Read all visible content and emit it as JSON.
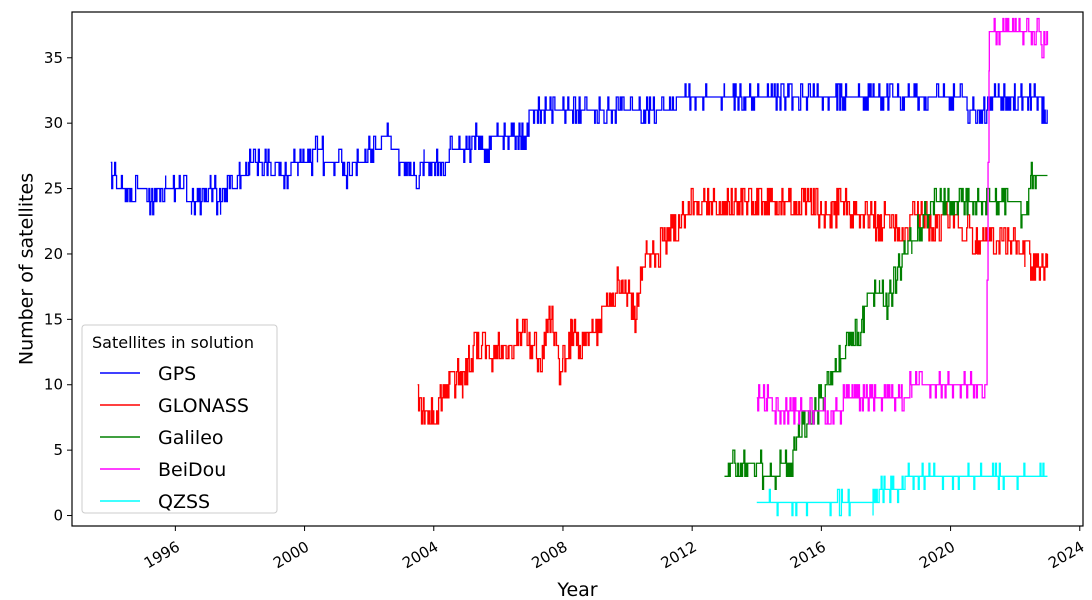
{
  "chart_data": {
    "type": "line",
    "title": "",
    "xlabel": "Year",
    "ylabel": "Number of satellites",
    "xlim": [
      1992.8,
      2024.1
    ],
    "ylim": [
      -0.8,
      38.5
    ],
    "x_ticks": [
      "1996",
      "2000",
      "2004",
      "2008",
      "2012",
      "2016",
      "2020",
      "2024"
    ],
    "y_ticks": [
      "0",
      "5",
      "10",
      "15",
      "20",
      "25",
      "30",
      "35"
    ],
    "grid": false,
    "legend": {
      "title": "Satellites in solution",
      "position": "lower-left"
    },
    "series": [
      {
        "name": "GPS",
        "color": "#0000ff",
        "noise": 0.35,
        "points": [
          [
            1994.0,
            26
          ],
          [
            1994.3,
            25
          ],
          [
            1994.5,
            24
          ],
          [
            1995.0,
            25
          ],
          [
            1995.4,
            24
          ],
          [
            1995.7,
            25
          ],
          [
            1996.2,
            25
          ],
          [
            1996.5,
            24
          ],
          [
            1996.9,
            24
          ],
          [
            1997.1,
            25
          ],
          [
            1997.4,
            24
          ],
          [
            1997.8,
            25
          ],
          [
            1998.0,
            26
          ],
          [
            1998.3,
            27
          ],
          [
            1999.0,
            27
          ],
          [
            1999.4,
            26
          ],
          [
            1999.8,
            27
          ],
          [
            2000.1,
            27
          ],
          [
            2000.4,
            28
          ],
          [
            2000.7,
            27
          ],
          [
            2001.0,
            27
          ],
          [
            2001.3,
            26
          ],
          [
            2001.6,
            27
          ],
          [
            2001.9,
            28
          ],
          [
            2002.2,
            28
          ],
          [
            2002.5,
            29
          ],
          [
            2002.8,
            28
          ],
          [
            2003.0,
            27
          ],
          [
            2003.2,
            27
          ],
          [
            2003.4,
            26
          ],
          [
            2003.7,
            27
          ],
          [
            2004.0,
            27
          ],
          [
            2004.3,
            27
          ],
          [
            2004.6,
            28
          ],
          [
            2005.0,
            28
          ],
          [
            2005.3,
            29
          ],
          [
            2005.6,
            28
          ],
          [
            2006.0,
            29
          ],
          [
            2006.4,
            29
          ],
          [
            2006.8,
            29
          ],
          [
            2007.0,
            31
          ],
          [
            2007.3,
            31
          ],
          [
            2007.8,
            31
          ],
          [
            2008.0,
            31
          ],
          [
            2008.5,
            31
          ],
          [
            2009.0,
            31
          ],
          [
            2009.5,
            31
          ],
          [
            2010.0,
            31
          ],
          [
            2010.5,
            31
          ],
          [
            2011.0,
            31
          ],
          [
            2012.0,
            32
          ],
          [
            2013.0,
            32
          ],
          [
            2014.0,
            32
          ],
          [
            2015.0,
            32
          ],
          [
            2016.0,
            32
          ],
          [
            2017.0,
            32
          ],
          [
            2018.0,
            32
          ],
          [
            2019.0,
            32
          ],
          [
            2020.0,
            32
          ],
          [
            2021.0,
            31
          ],
          [
            2021.5,
            32
          ],
          [
            2022.0,
            32
          ],
          [
            2022.5,
            32
          ],
          [
            2022.9,
            31
          ],
          [
            2023.0,
            31
          ]
        ]
      },
      {
        "name": "GLONASS",
        "color": "#ff0000",
        "noise": 0.6,
        "points": [
          [
            2003.5,
            9
          ],
          [
            2003.7,
            8
          ],
          [
            2003.9,
            8
          ],
          [
            2004.0,
            7
          ],
          [
            2004.2,
            9
          ],
          [
            2004.5,
            10
          ],
          [
            2004.8,
            11
          ],
          [
            2004.9,
            10
          ],
          [
            2005.1,
            12
          ],
          [
            2005.3,
            13
          ],
          [
            2005.6,
            13
          ],
          [
            2005.8,
            12
          ],
          [
            2006.0,
            13
          ],
          [
            2006.3,
            12
          ],
          [
            2006.6,
            14
          ],
          [
            2006.8,
            15
          ],
          [
            2007.0,
            13
          ],
          [
            2007.3,
            12
          ],
          [
            2007.6,
            15
          ],
          [
            2007.8,
            14
          ],
          [
            2007.9,
            10
          ],
          [
            2008.0,
            12
          ],
          [
            2008.3,
            14
          ],
          [
            2008.6,
            13
          ],
          [
            2008.9,
            14
          ],
          [
            2009.2,
            15
          ],
          [
            2009.5,
            17
          ],
          [
            2009.8,
            18
          ],
          [
            2010.0,
            17
          ],
          [
            2010.2,
            15
          ],
          [
            2010.4,
            18
          ],
          [
            2010.6,
            20
          ],
          [
            2010.9,
            20
          ],
          [
            2011.1,
            21
          ],
          [
            2011.4,
            22
          ],
          [
            2011.7,
            23
          ],
          [
            2012.0,
            24
          ],
          [
            2013.0,
            24
          ],
          [
            2014.0,
            24
          ],
          [
            2015.0,
            24
          ],
          [
            2015.8,
            24
          ],
          [
            2016.0,
            23
          ],
          [
            2016.3,
            23
          ],
          [
            2016.6,
            24
          ],
          [
            2017.0,
            23
          ],
          [
            2017.5,
            23
          ],
          [
            2017.8,
            22
          ],
          [
            2018.0,
            23
          ],
          [
            2018.5,
            22
          ],
          [
            2019.0,
            23
          ],
          [
            2019.5,
            22
          ],
          [
            2020.0,
            23
          ],
          [
            2020.5,
            22
          ],
          [
            2020.8,
            21
          ],
          [
            2021.0,
            21
          ],
          [
            2021.5,
            21
          ],
          [
            2022.0,
            21
          ],
          [
            2022.3,
            20
          ],
          [
            2022.6,
            19
          ],
          [
            2022.8,
            19
          ],
          [
            2023.0,
            20
          ]
        ]
      },
      {
        "name": "Galileo",
        "color": "#008000",
        "noise": 0.4,
        "points": [
          [
            2013.0,
            3
          ],
          [
            2013.2,
            4
          ],
          [
            2013.6,
            4
          ],
          [
            2014.0,
            4
          ],
          [
            2014.3,
            3
          ],
          [
            2014.6,
            3
          ],
          [
            2014.8,
            4
          ],
          [
            2015.0,
            4
          ],
          [
            2015.2,
            5
          ],
          [
            2015.4,
            7
          ],
          [
            2015.6,
            7
          ],
          [
            2015.8,
            8
          ],
          [
            2016.0,
            9
          ],
          [
            2016.2,
            10
          ],
          [
            2016.4,
            11
          ],
          [
            2016.6,
            12
          ],
          [
            2016.9,
            13
          ],
          [
            2017.1,
            14
          ],
          [
            2017.3,
            15
          ],
          [
            2017.5,
            17
          ],
          [
            2017.8,
            17
          ],
          [
            2018.0,
            16
          ],
          [
            2018.3,
            18
          ],
          [
            2018.5,
            20
          ],
          [
            2018.8,
            21
          ],
          [
            2019.0,
            22
          ],
          [
            2019.2,
            23
          ],
          [
            2019.5,
            24
          ],
          [
            2019.8,
            24
          ],
          [
            2020.0,
            24
          ],
          [
            2021.0,
            24
          ],
          [
            2021.5,
            24
          ],
          [
            2022.0,
            24
          ],
          [
            2022.3,
            23
          ],
          [
            2022.5,
            26
          ],
          [
            2022.8,
            26
          ],
          [
            2023.0,
            26
          ]
        ]
      },
      {
        "name": "BeiDou",
        "color": "#ff00ff",
        "noise": 0.35,
        "points": [
          [
            2014.0,
            9
          ],
          [
            2014.3,
            9
          ],
          [
            2014.6,
            8
          ],
          [
            2015.0,
            8
          ],
          [
            2015.5,
            8
          ],
          [
            2016.0,
            8
          ],
          [
            2016.5,
            8
          ],
          [
            2016.8,
            9
          ],
          [
            2017.0,
            9
          ],
          [
            2017.5,
            9
          ],
          [
            2018.0,
            9
          ],
          [
            2018.5,
            9
          ],
          [
            2018.8,
            10
          ],
          [
            2019.0,
            10
          ],
          [
            2019.5,
            10
          ],
          [
            2020.0,
            10
          ],
          [
            2020.5,
            10
          ],
          [
            2021.0,
            10
          ],
          [
            2021.1,
            10
          ],
          [
            2021.2,
            37
          ],
          [
            2021.5,
            37
          ],
          [
            2022.0,
            37
          ],
          [
            2022.5,
            37
          ],
          [
            2023.0,
            36
          ]
        ]
      },
      {
        "name": "QZSS",
        "color": "#00ffff",
        "noise": 0.15,
        "points": [
          [
            2014.0,
            1
          ],
          [
            2015.0,
            1
          ],
          [
            2016.0,
            1
          ],
          [
            2016.5,
            1
          ],
          [
            2017.0,
            1
          ],
          [
            2017.6,
            1
          ],
          [
            2017.7,
            2
          ],
          [
            2018.0,
            2
          ],
          [
            2018.5,
            2
          ],
          [
            2018.6,
            3
          ],
          [
            2019.0,
            3
          ],
          [
            2020.0,
            3
          ],
          [
            2021.0,
            3
          ],
          [
            2022.0,
            3
          ],
          [
            2022.5,
            3
          ],
          [
            2023.0,
            3
          ]
        ]
      }
    ]
  }
}
